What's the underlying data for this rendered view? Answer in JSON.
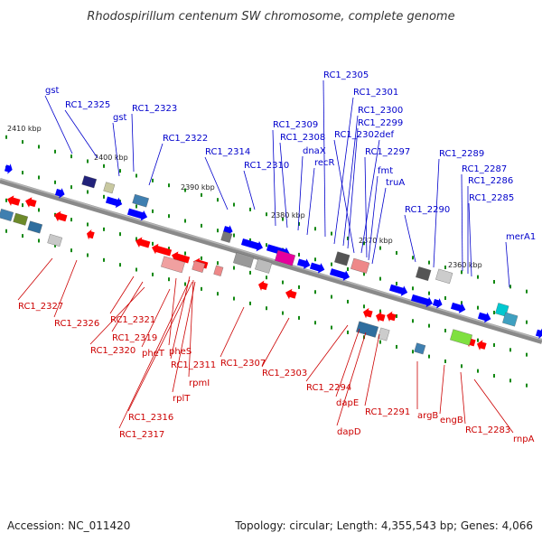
{
  "title": "Rhodospirillum centenum SW chromosome, complete genome",
  "footer": {
    "accession": "Accession: NC_011420",
    "summary": "Topology: circular; Length: 4,355,543 bp; Genes: 4,066"
  },
  "colors": {
    "forward_arrow": "#0000ff",
    "reverse_arrow": "#ff0000",
    "forward_label": "#0000cc",
    "reverse_label": "#cc0000",
    "backbone": "#888888",
    "tick": "#118811"
  },
  "backbone_kbp": [
    "2410 kbp",
    "2400 kbp",
    "2390 kbp",
    "2380 kbp",
    "2370 kbp",
    "2360 kbp"
  ],
  "top_labels": [
    "gst",
    "RC1_2325",
    "gst",
    "RC1_2323",
    "RC1_2322",
    "RC1_2314",
    "RC1_2310",
    "RC1_2309",
    "RC1_2308",
    "dnaX",
    "recR",
    "RC1_2305",
    "RC1_2301",
    "RC1_2300",
    "RC1_2299",
    "RC1_2302",
    "def",
    "RC1_2297",
    "fmt",
    "truA",
    "RC1_2290",
    "RC1_2289",
    "RC1_2287",
    "RC1_2286",
    "RC1_2285",
    "merA1"
  ],
  "bottom_labels": [
    "RC1_2327",
    "RC1_2326",
    "RC1_2321",
    "RC1_2319",
    "RC1_2320",
    "pheT",
    "pheS",
    "RC1_2311",
    "rpmI",
    "rplT",
    "RC1_2316",
    "RC1_2317",
    "RC1_2307",
    "RC1_2303",
    "RC1_2294",
    "dapE",
    "dapD",
    "RC1_2291",
    "argB",
    "engB",
    "RC1_2283",
    "rnpA"
  ]
}
